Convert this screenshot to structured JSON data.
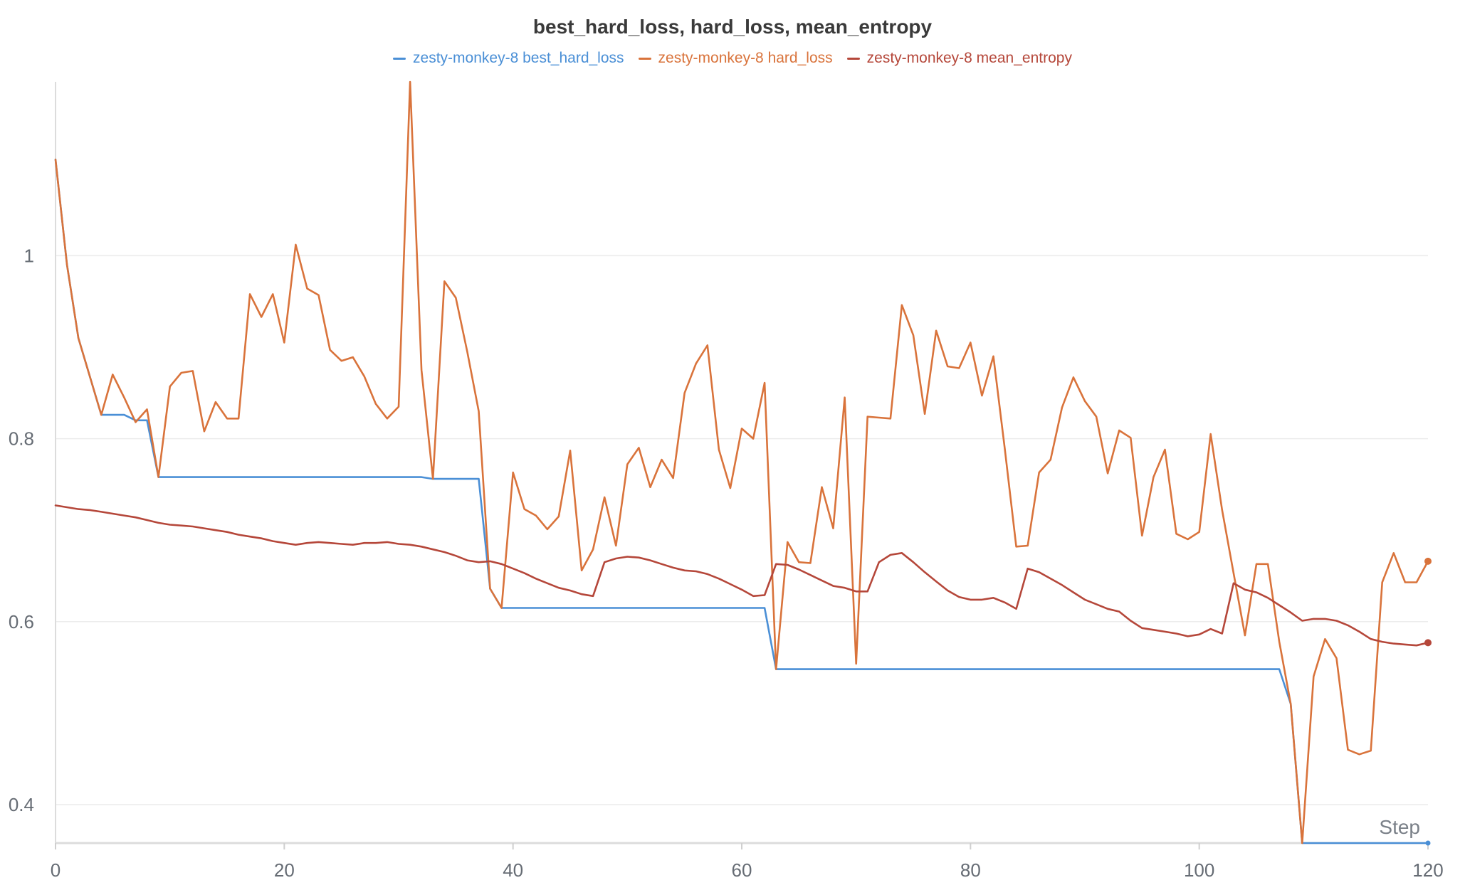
{
  "chart_data": {
    "type": "line",
    "title": "best_hard_loss, hard_loss, mean_entropy",
    "xlabel": "Step",
    "ylabel": "",
    "xlim": [
      0,
      120
    ],
    "ylim": [
      0.358,
      1.19
    ],
    "x_ticks": [
      "0",
      "20",
      "40",
      "60",
      "80",
      "100",
      "120"
    ],
    "y_ticks": [
      "0.4",
      "0.6",
      "0.8",
      "1"
    ],
    "grid": "horizontal",
    "legend_position": "top-center",
    "series": [
      {
        "name": "zesty-monkey-8 best_hard_loss",
        "color": "#4a8fd6",
        "x": [
          0,
          1,
          2,
          3,
          4,
          5,
          6,
          7,
          8,
          9,
          10,
          11,
          12,
          13,
          14,
          15,
          16,
          17,
          18,
          19,
          20,
          21,
          22,
          23,
          24,
          25,
          26,
          27,
          28,
          29,
          30,
          31,
          32,
          33,
          34,
          35,
          36,
          37,
          38,
          39,
          40,
          41,
          42,
          43,
          44,
          45,
          46,
          47,
          48,
          49,
          50,
          51,
          52,
          53,
          54,
          55,
          56,
          57,
          58,
          59,
          60,
          61,
          62,
          63,
          64,
          65,
          66,
          67,
          68,
          69,
          70,
          71,
          72,
          73,
          74,
          75,
          76,
          77,
          78,
          79,
          80,
          81,
          82,
          83,
          84,
          85,
          86,
          87,
          88,
          89,
          90,
          91,
          92,
          93,
          94,
          95,
          96,
          97,
          98,
          99,
          100,
          101,
          102,
          103,
          104,
          105,
          106,
          107,
          108,
          109,
          110,
          111,
          112,
          113,
          114,
          115,
          116,
          117,
          118,
          119,
          120
        ],
        "values": [
          1.105,
          0.99,
          0.91,
          0.868,
          0.826,
          0.826,
          0.826,
          0.82,
          0.82,
          0.758,
          0.758,
          0.758,
          0.758,
          0.758,
          0.758,
          0.758,
          0.758,
          0.758,
          0.758,
          0.758,
          0.758,
          0.758,
          0.758,
          0.758,
          0.758,
          0.758,
          0.758,
          0.758,
          0.758,
          0.758,
          0.758,
          0.758,
          0.758,
          0.756,
          0.756,
          0.756,
          0.756,
          0.756,
          0.636,
          0.615,
          0.615,
          0.615,
          0.615,
          0.615,
          0.615,
          0.615,
          0.615,
          0.615,
          0.615,
          0.615,
          0.615,
          0.615,
          0.615,
          0.615,
          0.615,
          0.615,
          0.615,
          0.615,
          0.615,
          0.615,
          0.615,
          0.615,
          0.615,
          0.548,
          0.548,
          0.548,
          0.548,
          0.548,
          0.548,
          0.548,
          0.548,
          0.548,
          0.548,
          0.548,
          0.548,
          0.548,
          0.548,
          0.548,
          0.548,
          0.548,
          0.548,
          0.548,
          0.548,
          0.548,
          0.548,
          0.548,
          0.548,
          0.548,
          0.548,
          0.548,
          0.548,
          0.548,
          0.548,
          0.548,
          0.548,
          0.548,
          0.548,
          0.548,
          0.548,
          0.548,
          0.548,
          0.548,
          0.548,
          0.548,
          0.548,
          0.548,
          0.548,
          0.548,
          0.51,
          0.358,
          0.358,
          0.358,
          0.358,
          0.358,
          0.358,
          0.358,
          0.358,
          0.358,
          0.358,
          0.358,
          0.358
        ]
      },
      {
        "name": "zesty-monkey-8 hard_loss",
        "color": "#d9733b",
        "x": [
          0,
          1,
          2,
          3,
          4,
          5,
          6,
          7,
          8,
          9,
          10,
          11,
          12,
          13,
          14,
          15,
          16,
          17,
          18,
          19,
          20,
          21,
          22,
          23,
          24,
          25,
          26,
          27,
          28,
          29,
          30,
          31,
          32,
          33,
          34,
          35,
          36,
          37,
          38,
          39,
          40,
          41,
          42,
          43,
          44,
          45,
          46,
          47,
          48,
          49,
          50,
          51,
          52,
          53,
          54,
          55,
          56,
          57,
          58,
          59,
          60,
          61,
          62,
          63,
          64,
          65,
          66,
          67,
          68,
          69,
          70,
          71,
          72,
          73,
          74,
          75,
          76,
          77,
          78,
          79,
          80,
          81,
          82,
          83,
          84,
          85,
          86,
          87,
          88,
          89,
          90,
          91,
          92,
          93,
          94,
          95,
          96,
          97,
          98,
          99,
          100,
          101,
          102,
          103,
          104,
          105,
          106,
          107,
          108,
          109,
          110,
          111,
          112,
          113,
          114,
          115,
          116,
          117,
          118,
          119,
          120
        ],
        "values": [
          1.105,
          0.99,
          0.91,
          0.868,
          0.826,
          0.87,
          0.845,
          0.818,
          0.832,
          0.758,
          0.857,
          0.872,
          0.874,
          0.808,
          0.84,
          0.822,
          0.822,
          0.958,
          0.933,
          0.958,
          0.905,
          1.012,
          0.964,
          0.957,
          0.897,
          0.885,
          0.889,
          0.868,
          0.838,
          0.822,
          0.835,
          1.19,
          0.875,
          0.756,
          0.972,
          0.954,
          0.895,
          0.83,
          0.636,
          0.615,
          0.763,
          0.723,
          0.716,
          0.701,
          0.715,
          0.787,
          0.656,
          0.679,
          0.736,
          0.683,
          0.772,
          0.79,
          0.747,
          0.777,
          0.757,
          0.85,
          0.882,
          0.902,
          0.788,
          0.746,
          0.811,
          0.8,
          0.861,
          0.548,
          0.687,
          0.665,
          0.664,
          0.747,
          0.702,
          0.845,
          0.554,
          0.824,
          0.823,
          0.822,
          0.946,
          0.913,
          0.827,
          0.918,
          0.879,
          0.877,
          0.905,
          0.847,
          0.89,
          0.789,
          0.682,
          0.683,
          0.763,
          0.777,
          0.834,
          0.867,
          0.841,
          0.824,
          0.762,
          0.809,
          0.801,
          0.694,
          0.758,
          0.788,
          0.696,
          0.69,
          0.698,
          0.805,
          0.722,
          0.653,
          0.585,
          0.663,
          0.663,
          0.578,
          0.51,
          0.358,
          0.54,
          0.581,
          0.56,
          0.46,
          0.455,
          0.459,
          0.643,
          0.675,
          0.643,
          0.643,
          0.666
        ]
      },
      {
        "name": "zesty-monkey-8 mean_entropy",
        "color": "#b5473a",
        "x": [
          0,
          1,
          2,
          3,
          4,
          5,
          6,
          7,
          8,
          9,
          10,
          11,
          12,
          13,
          14,
          15,
          16,
          17,
          18,
          19,
          20,
          21,
          22,
          23,
          24,
          25,
          26,
          27,
          28,
          29,
          30,
          31,
          32,
          33,
          34,
          35,
          36,
          37,
          38,
          39,
          40,
          41,
          42,
          43,
          44,
          45,
          46,
          47,
          48,
          49,
          50,
          51,
          52,
          53,
          54,
          55,
          56,
          57,
          58,
          59,
          60,
          61,
          62,
          63,
          64,
          65,
          66,
          67,
          68,
          69,
          70,
          71,
          72,
          73,
          74,
          75,
          76,
          77,
          78,
          79,
          80,
          81,
          82,
          83,
          84,
          85,
          86,
          87,
          88,
          89,
          90,
          91,
          92,
          93,
          94,
          95,
          96,
          97,
          98,
          99,
          100,
          101,
          102,
          103,
          104,
          105,
          106,
          107,
          108,
          109,
          110,
          111,
          112,
          113,
          114,
          115,
          116,
          117,
          118,
          119,
          120
        ],
        "values": [
          0.727,
          0.725,
          0.723,
          0.722,
          0.72,
          0.718,
          0.716,
          0.714,
          0.711,
          0.708,
          0.706,
          0.705,
          0.704,
          0.702,
          0.7,
          0.698,
          0.695,
          0.693,
          0.691,
          0.688,
          0.686,
          0.684,
          0.686,
          0.687,
          0.686,
          0.685,
          0.684,
          0.686,
          0.686,
          0.687,
          0.685,
          0.684,
          0.682,
          0.679,
          0.676,
          0.672,
          0.667,
          0.665,
          0.666,
          0.663,
          0.658,
          0.653,
          0.647,
          0.642,
          0.637,
          0.634,
          0.63,
          0.628,
          0.665,
          0.669,
          0.671,
          0.67,
          0.667,
          0.663,
          0.659,
          0.656,
          0.655,
          0.652,
          0.647,
          0.641,
          0.635,
          0.628,
          0.629,
          0.663,
          0.662,
          0.657,
          0.651,
          0.645,
          0.639,
          0.637,
          0.633,
          0.633,
          0.665,
          0.673,
          0.675,
          0.665,
          0.654,
          0.644,
          0.634,
          0.627,
          0.624,
          0.624,
          0.626,
          0.621,
          0.614,
          0.658,
          0.654,
          0.647,
          0.64,
          0.632,
          0.624,
          0.619,
          0.614,
          0.611,
          0.601,
          0.593,
          0.591,
          0.589,
          0.587,
          0.584,
          0.586,
          0.592,
          0.587,
          0.642,
          0.635,
          0.632,
          0.626,
          0.618,
          0.61,
          0.601,
          0.603,
          0.603,
          0.601,
          0.596,
          0.589,
          0.581,
          0.578,
          0.576,
          0.575,
          0.574,
          0.577
        ]
      }
    ]
  }
}
